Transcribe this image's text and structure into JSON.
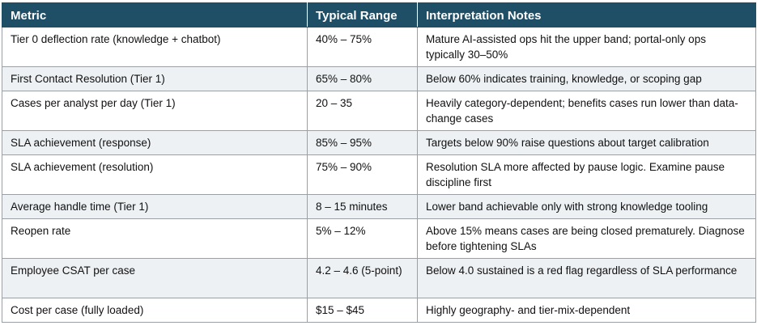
{
  "table": {
    "headers": [
      "Metric",
      "Typical Range",
      "Interpretation Notes"
    ],
    "rows": [
      [
        "Tier 0 deflection rate (knowledge + chatbot)",
        "40% – 75%",
        "Mature AI-assisted ops hit the upper band; portal-only ops typically 30–50%"
      ],
      [
        "First Contact Resolution (Tier 1)",
        "65% – 80%",
        "Below 60% indicates training, knowledge, or scoping gap"
      ],
      [
        "Cases per analyst per day (Tier 1)",
        "20 – 35",
        "Heavily category-dependent; benefits cases run lower than data-change cases"
      ],
      [
        "SLA achievement (response)",
        "85% – 95%",
        "Targets below 90% raise questions about target calibration"
      ],
      [
        "SLA achievement (resolution)",
        "75% – 90%",
        "Resolution SLA more affected by pause logic. Examine pause discipline first"
      ],
      [
        "Average handle time (Tier 1)",
        "8 – 15 minutes",
        "Lower band achievable only with strong knowledge tooling"
      ],
      [
        "Reopen rate",
        "5% – 12%",
        "Above 15% means cases are being closed prematurely. Diagnose before tightening SLAs"
      ],
      [
        "Employee CSAT per case",
        "4.2 – 4.6 (5-point)",
        "Below 4.0 sustained is a red flag regardless of SLA performance"
      ],
      [
        "Cost per case (fully loaded)",
        "$15 – $45",
        "Highly geography- and tier-mix-dependent"
      ]
    ]
  }
}
